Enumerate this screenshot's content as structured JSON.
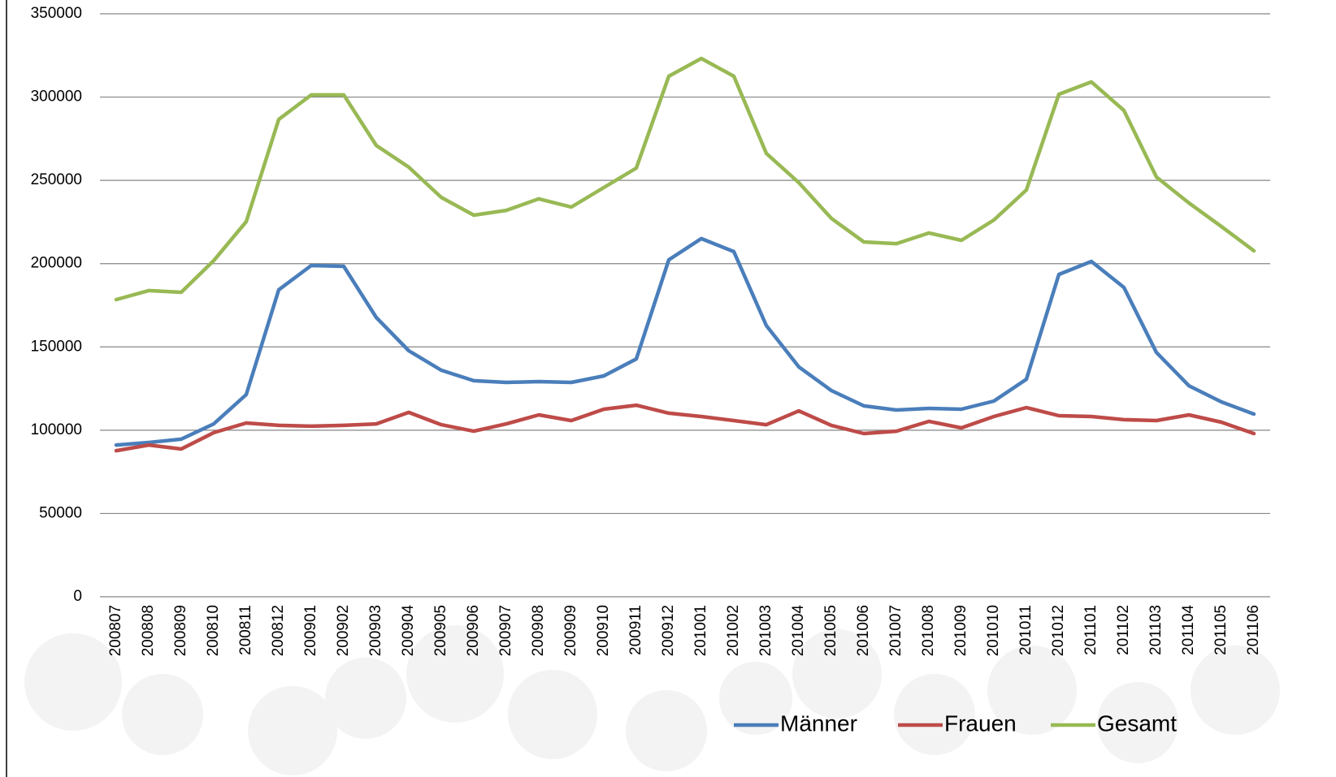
{
  "chart_data": {
    "type": "line",
    "categories": [
      "200807",
      "200808",
      "200809",
      "200810",
      "200811",
      "200812",
      "200901",
      "200902",
      "200903",
      "200904",
      "200905",
      "200906",
      "200907",
      "200908",
      "200909",
      "200910",
      "200911",
      "200912",
      "201001",
      "201002",
      "201003",
      "201004",
      "201005",
      "201006",
      "201007",
      "201008",
      "201009",
      "201010",
      "201011",
      "201012",
      "201101",
      "201102",
      "201103",
      "201104",
      "201105",
      "201106"
    ],
    "series": [
      {
        "name": "Männer",
        "color": "#4a7ebb",
        "values": [
          91100,
          92600,
          94600,
          103800,
          121400,
          184300,
          198900,
          198400,
          167700,
          147700,
          136000,
          129700,
          128700,
          129200,
          128700,
          132600,
          142800,
          202300,
          215000,
          207200,
          162800,
          138000,
          123800,
          114600,
          112100,
          113100,
          112600,
          117500,
          130600,
          193500,
          201300,
          185700,
          146700,
          126700,
          117000,
          109700
        ]
      },
      {
        "name": "Frauen",
        "color": "#be4b48",
        "values": [
          87700,
          91100,
          88700,
          98500,
          104300,
          102900,
          102400,
          102900,
          103800,
          110700,
          103300,
          99400,
          103800,
          109200,
          105800,
          112600,
          115000,
          110200,
          108200,
          105800,
          103300,
          111600,
          102900,
          98000,
          99400,
          105300,
          101400,
          108200,
          113600,
          108700,
          108200,
          106300,
          105800,
          109200,
          104800,
          98000
        ]
      },
      {
        "name": "Gesamt",
        "color": "#98b954",
        "values": [
          178400,
          183800,
          182800,
          201800,
          225200,
          286600,
          301300,
          301300,
          271000,
          257900,
          239800,
          229100,
          232000,
          238900,
          234000,
          245700,
          257400,
          312500,
          323200,
          312500,
          266200,
          248600,
          227200,
          213000,
          212000,
          218400,
          214000,
          226200,
          244200,
          301700,
          309100,
          292000,
          252000,
          236400,
          222300,
          207700
        ]
      }
    ],
    "ylim": [
      0,
      350000
    ],
    "yticks": [
      0,
      50000,
      100000,
      150000,
      200000,
      250000,
      300000,
      350000
    ],
    "grid": true,
    "legend": "bottom-right"
  }
}
